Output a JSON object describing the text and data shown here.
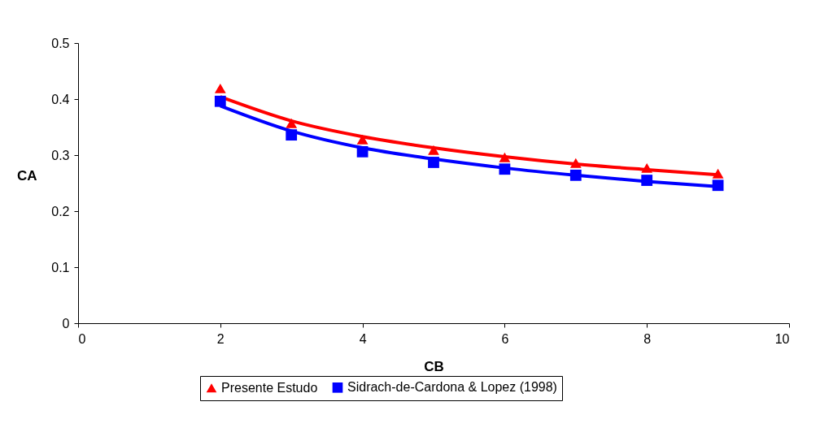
{
  "chart_data": {
    "type": "scatter",
    "xlabel": "CB",
    "ylabel": "CA",
    "x": [
      2,
      3,
      4,
      5,
      6,
      7,
      8,
      9
    ],
    "series": [
      {
        "name": "Presente Estudo",
        "color": "#ff0000",
        "marker": "triangle",
        "values": [
          0.419,
          0.357,
          0.328,
          0.309,
          0.296,
          0.286,
          0.277,
          0.267
        ]
      },
      {
        "name": "Sidrach-de-Cardona & Lopez (1998)",
        "color": "#0000ff",
        "marker": "square",
        "values": [
          0.396,
          0.336,
          0.306,
          0.287,
          0.275,
          0.264,
          0.255,
          0.246
        ]
      },
      {
        "type": "line",
        "color": "#ff0000",
        "marker": "none",
        "line_style": "solid",
        "values": [
          0.404,
          0.361,
          0.333,
          0.313,
          0.297,
          0.284,
          0.274,
          0.265
        ]
      },
      {
        "type": "line",
        "color": "#0000ff",
        "marker": "none",
        "line_style": "solid",
        "values": [
          0.388,
          0.343,
          0.313,
          0.293,
          0.277,
          0.264,
          0.253,
          0.244
        ]
      }
    ],
    "xlim": [
      0,
      10
    ],
    "xticks": [
      0,
      2,
      4,
      6,
      8,
      10
    ],
    "ylim": [
      0,
      0.5
    ],
    "yticks": [
      0,
      0.1,
      0.2,
      0.3,
      0.4,
      0.5
    ],
    "grid": false,
    "legend": "bottom"
  }
}
